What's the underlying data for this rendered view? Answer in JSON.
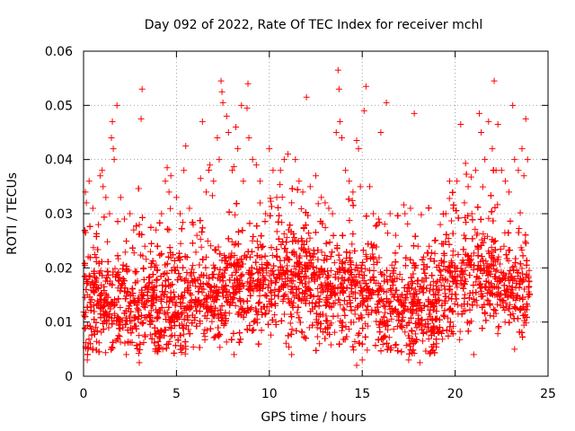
{
  "chart_data": {
    "type": "scatter",
    "title": "Day 092 of 2022, Rate Of TEC Index for receiver mchl",
    "xlabel": "GPS time / hours",
    "ylabel": "ROTI / TECUs",
    "xlim": [
      0,
      25
    ],
    "ylim": [
      0,
      0.06
    ],
    "x_ticks": [
      "0",
      "5",
      "10",
      "15",
      "20",
      "25"
    ],
    "y_ticks": [
      "0",
      "0.01",
      "0.02",
      "0.03",
      "0.04",
      "0.05",
      "0.06"
    ],
    "grid": true,
    "marker": "plus",
    "color": "#ff0000",
    "x_extent": [
      0,
      24
    ],
    "series": [
      {
        "points": [
          [
            0.1,
            0.034
          ],
          [
            0.15,
            0.032
          ],
          [
            0.3,
            0.036
          ],
          [
            0.5,
            0.031
          ],
          [
            0.8,
            0.028
          ],
          [
            0.9,
            0.037
          ],
          [
            1.0,
            0.038
          ],
          [
            1.05,
            0.035
          ],
          [
            1.2,
            0.033
          ],
          [
            1.4,
            0.03
          ],
          [
            1.5,
            0.044
          ],
          [
            1.55,
            0.047
          ],
          [
            1.6,
            0.042
          ],
          [
            1.65,
            0.04
          ],
          [
            1.8,
            0.05
          ],
          [
            2.0,
            0.033
          ],
          [
            2.2,
            0.029
          ],
          [
            2.5,
            0.03
          ],
          [
            2.7,
            0.027
          ],
          [
            3.0,
            0.028
          ],
          [
            3.1,
            0.0475
          ],
          [
            3.15,
            0.053
          ],
          [
            3.3,
            0.024
          ],
          [
            3.6,
            0.023
          ],
          [
            3.9,
            0.027
          ],
          [
            4.2,
            0.03
          ],
          [
            4.4,
            0.036
          ],
          [
            4.5,
            0.0385
          ],
          [
            4.6,
            0.034
          ],
          [
            4.7,
            0.037
          ],
          [
            5.0,
            0.033
          ],
          [
            5.2,
            0.03
          ],
          [
            5.4,
            0.038
          ],
          [
            5.5,
            0.0425
          ],
          [
            5.7,
            0.031
          ],
          [
            5.9,
            0.028
          ],
          [
            6.1,
            0.026
          ],
          [
            6.3,
            0.0365
          ],
          [
            6.4,
            0.047
          ],
          [
            6.6,
            0.034
          ],
          [
            6.8,
            0.039
          ],
          [
            7.0,
            0.036
          ],
          [
            7.2,
            0.044
          ],
          [
            7.3,
            0.04
          ],
          [
            7.4,
            0.0545
          ],
          [
            7.45,
            0.0525
          ],
          [
            7.5,
            0.0505
          ],
          [
            7.7,
            0.048
          ],
          [
            7.8,
            0.045
          ],
          [
            8.0,
            0.038
          ],
          [
            8.2,
            0.046
          ],
          [
            8.3,
            0.042
          ],
          [
            8.5,
            0.05
          ],
          [
            8.6,
            0.036
          ],
          [
            8.8,
            0.0495
          ],
          [
            8.85,
            0.054
          ],
          [
            8.9,
            0.044
          ],
          [
            9.1,
            0.04
          ],
          [
            9.3,
            0.039
          ],
          [
            9.5,
            0.036
          ],
          [
            9.8,
            0.03
          ],
          [
            10.0,
            0.042
          ],
          [
            10.2,
            0.038
          ],
          [
            10.4,
            0.033
          ],
          [
            10.6,
            0.038
          ],
          [
            10.8,
            0.04
          ],
          [
            11.0,
            0.041
          ],
          [
            11.2,
            0.032
          ],
          [
            11.4,
            0.04
          ],
          [
            11.6,
            0.036
          ],
          [
            11.8,
            0.034
          ],
          [
            12.0,
            0.0515
          ],
          [
            12.2,
            0.035
          ],
          [
            12.5,
            0.037
          ],
          [
            12.8,
            0.033
          ],
          [
            13.0,
            0.032
          ],
          [
            13.2,
            0.031
          ],
          [
            13.4,
            0.03
          ],
          [
            13.6,
            0.045
          ],
          [
            13.7,
            0.0565
          ],
          [
            13.75,
            0.053
          ],
          [
            13.8,
            0.047
          ],
          [
            13.9,
            0.044
          ],
          [
            14.1,
            0.038
          ],
          [
            14.3,
            0.036
          ],
          [
            14.5,
            0.034
          ],
          [
            14.7,
            0.0435
          ],
          [
            14.8,
            0.042
          ],
          [
            14.9,
            0.035
          ],
          [
            15.1,
            0.049
          ],
          [
            15.2,
            0.0535
          ],
          [
            15.4,
            0.035
          ],
          [
            15.6,
            0.03
          ],
          [
            15.8,
            0.028
          ],
          [
            16.0,
            0.045
          ],
          [
            16.3,
            0.0505
          ],
          [
            16.5,
            0.03
          ],
          [
            16.8,
            0.026
          ],
          [
            17.0,
            0.024
          ],
          [
            17.3,
            0.03
          ],
          [
            17.6,
            0.031
          ],
          [
            17.8,
            0.0485
          ],
          [
            18.0,
            0.024
          ],
          [
            18.3,
            0.022
          ],
          [
            18.6,
            0.024
          ],
          [
            18.9,
            0.025
          ],
          [
            19.2,
            0.028
          ],
          [
            19.5,
            0.03
          ],
          [
            19.7,
            0.036
          ],
          [
            19.9,
            0.031
          ],
          [
            20.1,
            0.036
          ],
          [
            20.3,
            0.0465
          ],
          [
            20.5,
            0.032
          ],
          [
            20.7,
            0.035
          ],
          [
            20.9,
            0.03
          ],
          [
            21.1,
            0.038
          ],
          [
            21.3,
            0.0485
          ],
          [
            21.4,
            0.045
          ],
          [
            21.6,
            0.04
          ],
          [
            21.8,
            0.047
          ],
          [
            22.0,
            0.042
          ],
          [
            22.1,
            0.0545
          ],
          [
            22.2,
            0.038
          ],
          [
            22.3,
            0.0465
          ],
          [
            22.5,
            0.038
          ],
          [
            22.7,
            0.036
          ],
          [
            22.9,
            0.034
          ],
          [
            23.1,
            0.05
          ],
          [
            23.2,
            0.04
          ],
          [
            23.4,
            0.038
          ],
          [
            23.6,
            0.042
          ],
          [
            23.7,
            0.037
          ],
          [
            23.8,
            0.0475
          ],
          [
            23.9,
            0.04
          ],
          [
            0.2,
            0.003
          ],
          [
            2.3,
            0.004
          ],
          [
            3.0,
            0.0025
          ],
          [
            5.5,
            0.005
          ],
          [
            8.1,
            0.004
          ],
          [
            11.2,
            0.004
          ],
          [
            12.7,
            0.006
          ],
          [
            14.7,
            0.002
          ],
          [
            15.0,
            0.003
          ],
          [
            17.5,
            0.003
          ],
          [
            18.1,
            0.0025
          ],
          [
            19.0,
            0.006
          ],
          [
            21.0,
            0.004
          ],
          [
            23.2,
            0.005
          ]
        ]
      }
    ]
  }
}
